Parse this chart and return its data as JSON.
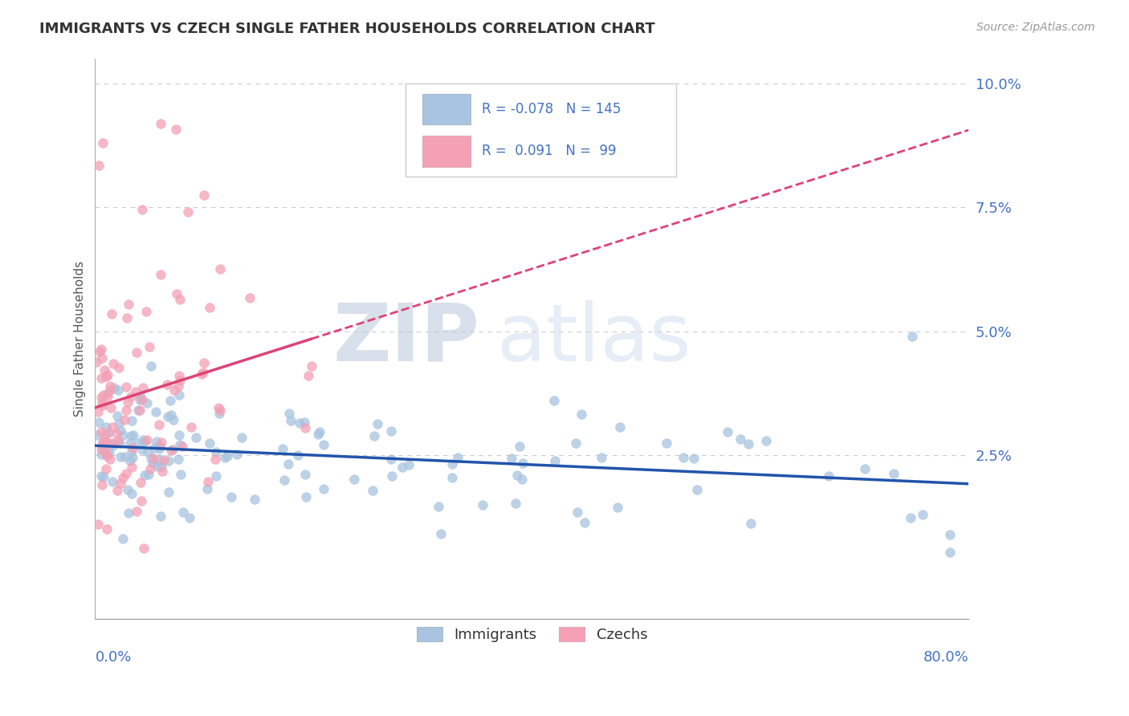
{
  "title": "IMMIGRANTS VS CZECH SINGLE FATHER HOUSEHOLDS CORRELATION CHART",
  "source": "Source: ZipAtlas.com",
  "ylabel": "Single Father Households",
  "xmin": 0.0,
  "xmax": 0.8,
  "ymin": -0.008,
  "ymax": 0.105,
  "legend_r_immigrants": "-0.078",
  "legend_n_immigrants": "145",
  "legend_r_czechs": "0.091",
  "legend_n_czechs": "99",
  "immigrants_color": "#a8c4e0",
  "czechs_color": "#f4a0b5",
  "immigrants_line_color": "#2255aa",
  "czechs_line_color": "#dd4477",
  "background_color": "#ffffff",
  "grid_color": "#cccccc",
  "watermark_zip": "ZIP",
  "watermark_atlas": "atlas",
  "watermark_color": "#dde4f0",
  "axis_label_color": "#4472c4",
  "title_color": "#333333"
}
